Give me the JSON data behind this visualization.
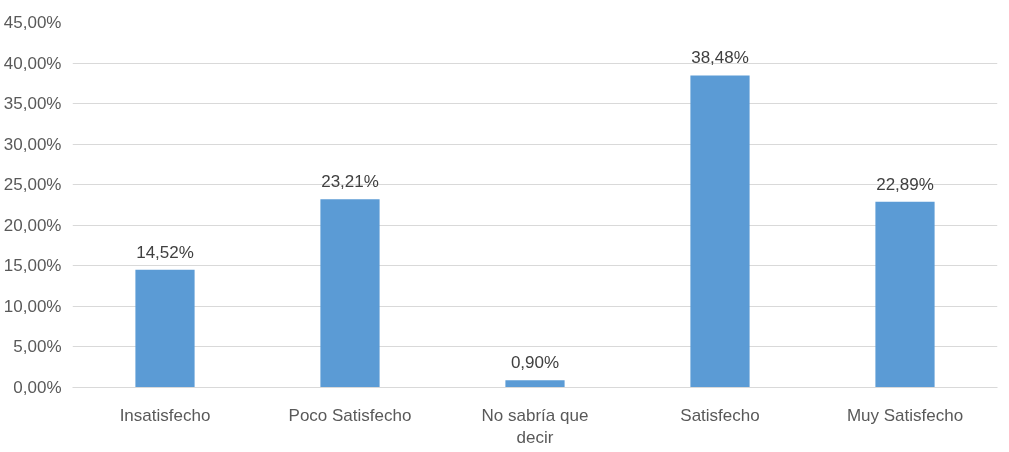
{
  "chart_data": {
    "type": "bar",
    "categories": [
      "Insatisfecho",
      "Poco Satisfecho",
      "No sabría que decir",
      "Satisfecho",
      "Muy Satisfecho"
    ],
    "values": [
      14.52,
      23.21,
      0.9,
      38.48,
      22.89
    ],
    "value_labels": [
      "14,52%",
      "23,21%",
      "0,90%",
      "38,48%",
      "22,89%"
    ],
    "color": "#5b9bd5",
    "ylim": [
      0,
      45
    ],
    "yticks": [
      {
        "value": 0,
        "label": "0,00%"
      },
      {
        "value": 5,
        "label": "5,00%"
      },
      {
        "value": 10,
        "label": "10,00%"
      },
      {
        "value": 15,
        "label": "15,00%"
      },
      {
        "value": 20,
        "label": "20,00%"
      },
      {
        "value": 25,
        "label": "25,00%"
      },
      {
        "value": 30,
        "label": "30,00%"
      },
      {
        "value": 35,
        "label": "35,00%"
      },
      {
        "value": 40,
        "label": "40,00%"
      },
      {
        "value": 45,
        "label": "45,00%"
      }
    ],
    "grid": "y"
  }
}
